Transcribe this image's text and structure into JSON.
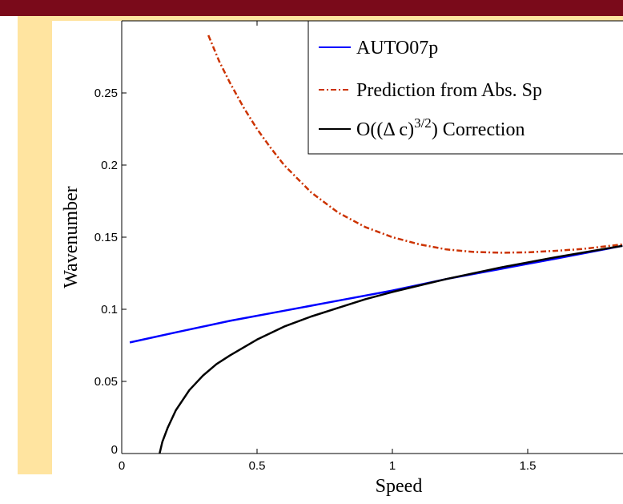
{
  "chart_data": {
    "type": "line",
    "xlabel": "Speed",
    "ylabel": "Wavenumber",
    "xlim": [
      0,
      1.85
    ],
    "ylim": [
      0,
      0.29
    ],
    "x_ticks": [
      "0",
      "0.5",
      "1",
      "1.5"
    ],
    "y_ticks": [
      "0",
      "0.05",
      "0.1",
      "0.15",
      "0.2",
      "0.25"
    ],
    "legend_placement": "top-right",
    "series": [
      {
        "name": "AUTO07p",
        "color": "#0000ff",
        "style": "solid",
        "x": [
          0.03,
          0.2,
          0.4,
          0.6,
          0.8,
          1.0,
          1.2,
          1.4,
          1.6,
          1.85
        ],
        "y": [
          0.077,
          0.084,
          0.092,
          0.099,
          0.106,
          0.113,
          0.121,
          0.128,
          0.135,
          0.144
        ]
      },
      {
        "name": "Prediction from Abs. Sp",
        "color": "#cc3300",
        "style": "dashdot",
        "x": [
          0.32,
          0.36,
          0.4,
          0.45,
          0.5,
          0.55,
          0.6,
          0.7,
          0.8,
          0.9,
          1.0,
          1.1,
          1.2,
          1.3,
          1.4,
          1.5,
          1.6,
          1.7,
          1.85
        ],
        "y": [
          0.29,
          0.272,
          0.257,
          0.24,
          0.225,
          0.212,
          0.2,
          0.181,
          0.167,
          0.157,
          0.15,
          0.145,
          0.1415,
          0.1398,
          0.1392,
          0.1395,
          0.1405,
          0.1418,
          0.145
        ]
      },
      {
        "name": "O((Δ c)^3/2) Correction",
        "color": "#000000",
        "style": "solid",
        "x": [
          0.14,
          0.15,
          0.17,
          0.2,
          0.25,
          0.3,
          0.35,
          0.4,
          0.5,
          0.6,
          0.7,
          0.8,
          0.9,
          1.0,
          1.2,
          1.4,
          1.6,
          1.85
        ],
        "y": [
          0.0,
          0.008,
          0.018,
          0.03,
          0.044,
          0.054,
          0.062,
          0.068,
          0.079,
          0.088,
          0.095,
          0.101,
          0.107,
          0.112,
          0.121,
          0.129,
          0.136,
          0.144
        ]
      }
    ]
  }
}
